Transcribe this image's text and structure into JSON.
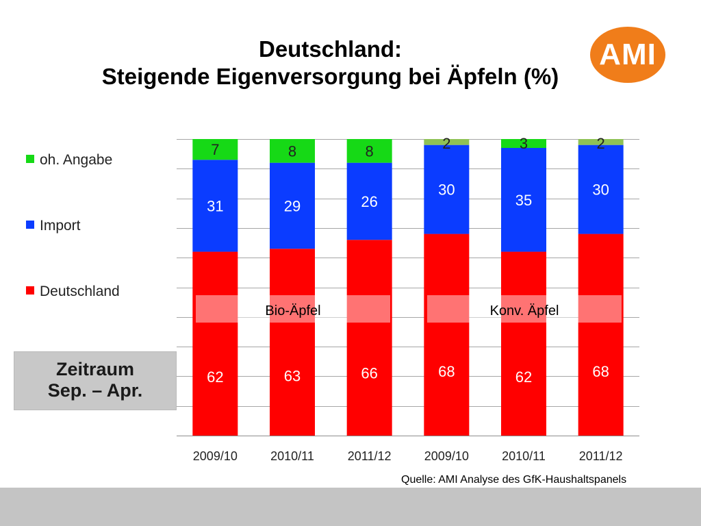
{
  "title": {
    "line1": "Deutschland:",
    "line2": "Steigende Eigenversorgung bei Äpfeln (%)"
  },
  "logo": {
    "text": "AMI",
    "color": "#f07d1a"
  },
  "period_box": {
    "line1": "Zeitraum",
    "line2": "Sep. – Apr."
  },
  "source": "Quelle: AMI Analyse des GfK-Haushaltspanels",
  "chart_data": {
    "type": "bar",
    "stacked": true,
    "categories": [
      "2009/10",
      "2010/11",
      "2011/12",
      "2009/10",
      "2010/11",
      "2011/12"
    ],
    "series": [
      {
        "name": "Deutschland",
        "color": "#ff0000",
        "values": [
          62,
          63,
          66,
          68,
          62,
          68
        ]
      },
      {
        "name": "Import",
        "color": "#0b3cff",
        "values": [
          31,
          29,
          26,
          30,
          35,
          30
        ]
      },
      {
        "name": "oh. Angabe",
        "color": "#16d916",
        "values": [
          7,
          8,
          8,
          2,
          3,
          2
        ]
      }
    ],
    "legend_order": [
      "oh. Angabe",
      "Import",
      "Deutschland"
    ],
    "legend_position": "left",
    "groups": [
      {
        "label": "Bio-Äpfel",
        "categories": [
          0,
          1,
          2
        ]
      },
      {
        "label": "Konv. Äpfel",
        "categories": [
          3,
          4,
          5
        ]
      }
    ],
    "ylim": [
      0,
      100
    ],
    "grid": true,
    "xlabel": "",
    "ylabel": ""
  }
}
